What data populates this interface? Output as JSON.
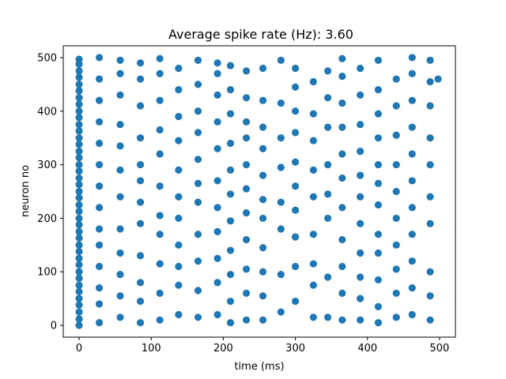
{
  "chart_data": {
    "type": "scatter",
    "title": "Average spike rate (Hz): 3.60",
    "xlabel": "time (ms)",
    "ylabel": "neuron no",
    "xlim": [
      -22,
      522
    ],
    "ylim": [
      -22,
      522
    ],
    "xticks": [
      0,
      100,
      200,
      300,
      400,
      500
    ],
    "yticks": [
      0,
      100,
      200,
      300,
      400,
      500
    ],
    "grid": false,
    "legend": "none",
    "marker_color": "#1f77b4",
    "series": [
      {
        "points": [
          [
            0,
            0
          ],
          [
            0,
            12
          ],
          [
            0,
            25
          ],
          [
            0,
            38
          ],
          [
            0,
            50
          ],
          [
            0,
            63
          ],
          [
            0,
            75
          ],
          [
            0,
            88
          ],
          [
            0,
            100
          ],
          [
            0,
            113
          ],
          [
            0,
            125
          ],
          [
            0,
            138
          ],
          [
            0,
            150
          ],
          [
            0,
            163
          ],
          [
            0,
            175
          ],
          [
            0,
            188
          ],
          [
            0,
            200
          ],
          [
            0,
            213
          ],
          [
            0,
            225
          ],
          [
            0,
            238
          ],
          [
            0,
            250
          ],
          [
            0,
            263
          ],
          [
            0,
            275
          ],
          [
            0,
            288
          ],
          [
            0,
            300
          ],
          [
            0,
            313
          ],
          [
            0,
            325
          ],
          [
            0,
            338
          ],
          [
            0,
            350
          ],
          [
            0,
            363
          ],
          [
            0,
            375
          ],
          [
            0,
            388
          ],
          [
            0,
            400
          ],
          [
            0,
            413
          ],
          [
            0,
            425
          ],
          [
            0,
            438
          ],
          [
            0,
            450
          ],
          [
            0,
            463
          ],
          [
            0,
            475
          ],
          [
            0,
            488
          ],
          [
            0,
            497
          ],
          [
            28,
            5
          ],
          [
            28,
            40
          ],
          [
            28,
            70
          ],
          [
            28,
            110
          ],
          [
            28,
            150
          ],
          [
            28,
            180
          ],
          [
            28,
            220
          ],
          [
            28,
            260
          ],
          [
            28,
            300
          ],
          [
            28,
            340
          ],
          [
            28,
            380
          ],
          [
            28,
            420
          ],
          [
            28,
            460
          ],
          [
            28,
            500
          ],
          [
            57,
            15
          ],
          [
            57,
            55
          ],
          [
            57,
            95
          ],
          [
            57,
            135
          ],
          [
            57,
            180
          ],
          [
            57,
            240
          ],
          [
            57,
            290
          ],
          [
            57,
            335
          ],
          [
            57,
            375
          ],
          [
            57,
            430
          ],
          [
            57,
            470
          ],
          [
            57,
            495
          ],
          [
            85,
            5
          ],
          [
            85,
            45
          ],
          [
            85,
            80
          ],
          [
            85,
            130
          ],
          [
            85,
            190
          ],
          [
            85,
            230
          ],
          [
            85,
            270
          ],
          [
            85,
            300
          ],
          [
            85,
            350
          ],
          [
            85,
            410
          ],
          [
            85,
            460
          ],
          [
            85,
            490
          ],
          [
            112,
            10
          ],
          [
            112,
            60
          ],
          [
            112,
            115
          ],
          [
            112,
            170
          ],
          [
            112,
            205
          ],
          [
            112,
            260
          ],
          [
            112,
            320
          ],
          [
            112,
            365
          ],
          [
            112,
            420
          ],
          [
            112,
            470
          ],
          [
            112,
            498
          ],
          [
            138,
            20
          ],
          [
            138,
            75
          ],
          [
            138,
            110
          ],
          [
            138,
            150
          ],
          [
            138,
            200
          ],
          [
            138,
            240
          ],
          [
            138,
            290
          ],
          [
            138,
            345
          ],
          [
            138,
            390
          ],
          [
            138,
            440
          ],
          [
            138,
            480
          ],
          [
            165,
            15
          ],
          [
            165,
            65
          ],
          [
            165,
            120
          ],
          [
            165,
            170
          ],
          [
            165,
            230
          ],
          [
            165,
            265
          ],
          [
            165,
            310
          ],
          [
            165,
            360
          ],
          [
            165,
            400
          ],
          [
            165,
            450
          ],
          [
            165,
            495
          ],
          [
            192,
            20
          ],
          [
            192,
            80
          ],
          [
            192,
            125
          ],
          [
            192,
            175
          ],
          [
            192,
            220
          ],
          [
            192,
            270
          ],
          [
            192,
            330
          ],
          [
            192,
            380
          ],
          [
            192,
            430
          ],
          [
            192,
            470
          ],
          [
            192,
            490
          ],
          [
            210,
            5
          ],
          [
            210,
            45
          ],
          [
            210,
            95
          ],
          [
            210,
            140
          ],
          [
            210,
            195
          ],
          [
            210,
            245
          ],
          [
            210,
            290
          ],
          [
            210,
            340
          ],
          [
            210,
            395
          ],
          [
            210,
            440
          ],
          [
            210,
            485
          ],
          [
            232,
            10
          ],
          [
            232,
            60
          ],
          [
            232,
            105
          ],
          [
            232,
            160
          ],
          [
            232,
            210
          ],
          [
            232,
            255
          ],
          [
            232,
            300
          ],
          [
            232,
            350
          ],
          [
            232,
            380
          ],
          [
            232,
            425
          ],
          [
            232,
            475
          ],
          [
            255,
            10
          ],
          [
            255,
            55
          ],
          [
            255,
            100
          ],
          [
            255,
            145
          ],
          [
            255,
            200
          ],
          [
            255,
            235
          ],
          [
            255,
            280
          ],
          [
            255,
            330
          ],
          [
            255,
            370
          ],
          [
            255,
            420
          ],
          [
            255,
            480
          ],
          [
            280,
            25
          ],
          [
            280,
            95
          ],
          [
            280,
            180
          ],
          [
            280,
            230
          ],
          [
            280,
            295
          ],
          [
            280,
            350
          ],
          [
            280,
            415
          ],
          [
            280,
            495
          ],
          [
            300,
            45
          ],
          [
            300,
            110
          ],
          [
            300,
            165
          ],
          [
            300,
            215
          ],
          [
            300,
            260
          ],
          [
            300,
            305
          ],
          [
            300,
            360
          ],
          [
            300,
            400
          ],
          [
            300,
            445
          ],
          [
            300,
            480
          ],
          [
            325,
            15
          ],
          [
            325,
            75
          ],
          [
            325,
            115
          ],
          [
            325,
            170
          ],
          [
            325,
            240
          ],
          [
            325,
            290
          ],
          [
            325,
            345
          ],
          [
            325,
            395
          ],
          [
            325,
            455
          ],
          [
            345,
            15
          ],
          [
            345,
            90
          ],
          [
            345,
            200
          ],
          [
            345,
            245
          ],
          [
            345,
            300
          ],
          [
            345,
            370
          ],
          [
            345,
            425
          ],
          [
            345,
            475
          ],
          [
            365,
            10
          ],
          [
            365,
            60
          ],
          [
            365,
            110
          ],
          [
            365,
            160
          ],
          [
            365,
            220
          ],
          [
            365,
            275
          ],
          [
            365,
            320
          ],
          [
            365,
            370
          ],
          [
            365,
            415
          ],
          [
            365,
            465
          ],
          [
            365,
            498
          ],
          [
            390,
            10
          ],
          [
            390,
            50
          ],
          [
            390,
            90
          ],
          [
            390,
            135
          ],
          [
            390,
            190
          ],
          [
            390,
            240
          ],
          [
            390,
            280
          ],
          [
            390,
            325
          ],
          [
            390,
            375
          ],
          [
            390,
            430
          ],
          [
            390,
            480
          ],
          [
            415,
            5
          ],
          [
            415,
            35
          ],
          [
            415,
            85
          ],
          [
            415,
            135
          ],
          [
            415,
            170
          ],
          [
            415,
            225
          ],
          [
            415,
            265
          ],
          [
            415,
            300
          ],
          [
            415,
            350
          ],
          [
            415,
            395
          ],
          [
            415,
            440
          ],
          [
            415,
            495
          ],
          [
            440,
            15
          ],
          [
            440,
            60
          ],
          [
            440,
            105
          ],
          [
            440,
            150
          ],
          [
            440,
            200
          ],
          [
            440,
            250
          ],
          [
            440,
            300
          ],
          [
            440,
            355
          ],
          [
            440,
            410
          ],
          [
            440,
            460
          ],
          [
            462,
            20
          ],
          [
            462,
            70
          ],
          [
            462,
            120
          ],
          [
            462,
            170
          ],
          [
            462,
            220
          ],
          [
            462,
            270
          ],
          [
            462,
            320
          ],
          [
            462,
            370
          ],
          [
            462,
            420
          ],
          [
            462,
            470
          ],
          [
            462,
            500
          ],
          [
            487,
            10
          ],
          [
            487,
            55
          ],
          [
            487,
            100
          ],
          [
            487,
            190
          ],
          [
            487,
            240
          ],
          [
            487,
            300
          ],
          [
            487,
            350
          ],
          [
            487,
            410
          ],
          [
            487,
            455
          ],
          [
            487,
            495
          ],
          [
            498,
            460
          ]
        ]
      }
    ]
  }
}
